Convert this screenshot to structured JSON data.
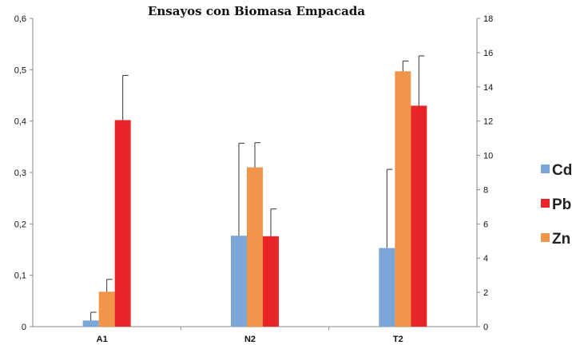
{
  "chart_data": {
    "type": "bar",
    "title": "Ensayos con Biomasa Empacada",
    "xlabel": "",
    "ylabel": "",
    "categories": [
      "A1",
      "N2",
      "T2"
    ],
    "series": [
      {
        "name": "Cd",
        "color": "#7aa7d8",
        "values": [
          0.012,
          0.177,
          0.153
        ],
        "errors": [
          0.016,
          0.18,
          0.153
        ]
      },
      {
        "name": "Zn",
        "color": "#f0954a",
        "values": [
          0.068,
          0.31,
          0.497
        ],
        "errors": [
          0.024,
          0.048,
          0.02
        ]
      },
      {
        "name": "Pb",
        "color": "#e8262a",
        "values": [
          0.402,
          0.176,
          0.43
        ],
        "errors": [
          0.087,
          0.053,
          0.097
        ]
      }
    ],
    "ylim": [
      0,
      0.6
    ],
    "yticks": [
      "0",
      "0,1",
      "0,2",
      "0,3",
      "0,4",
      "0,5",
      "0,6"
    ],
    "y2lim": [
      0,
      18
    ],
    "y2ticks": [
      "0",
      "2",
      "4",
      "6",
      "8",
      "10",
      "12",
      "14",
      "16",
      "18"
    ],
    "legend": {
      "position": "right",
      "items": [
        {
          "name": "Cd",
          "color": "#7aa7d8"
        },
        {
          "name": "Pb",
          "color": "#e8262a"
        },
        {
          "name": "Zn",
          "color": "#f0954a"
        }
      ]
    },
    "grid": false
  }
}
